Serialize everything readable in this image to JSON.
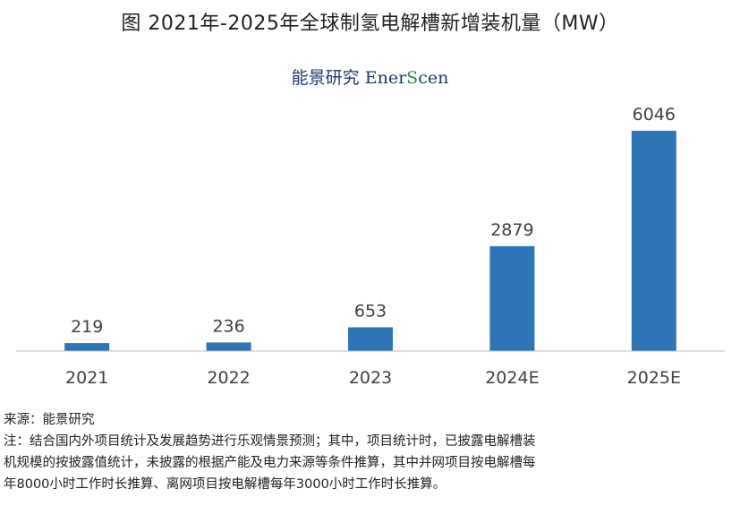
{
  "title": "图  2021年-2025年全球制氢电解槽新增装机量（MW）",
  "watermark": {
    "cn": "能景研究",
    "en_prefix": "Ener",
    "en_s": "S",
    "en_suffix": "cen"
  },
  "chart_data": {
    "type": "bar",
    "categories": [
      "2021",
      "2022",
      "2023",
      "2024E",
      "2025E"
    ],
    "values": [
      219,
      236,
      653,
      2879,
      6046
    ],
    "ylim": [
      0,
      6046
    ],
    "grid": false,
    "bar_color": "#2e75b6"
  },
  "footer": {
    "source": "来源：能景研究",
    "note_line1": "注：结合国内外项目统计及发展趋势进行乐观情景预测；其中，项目统计时，已披露电解槽装",
    "note_line2": "机规模的按披露值统计，未披露的根据产能及电力来源等条件推算，其中并网项目按电解槽每",
    "note_line3": "年8000小时工作时长推算、离网项目按电解槽每年3000小时工作时长推算。"
  }
}
